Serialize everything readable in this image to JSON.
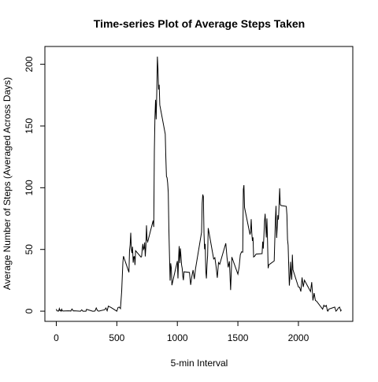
{
  "chart_data": {
    "type": "line",
    "title": "Time-series Plot of Average Steps Taken",
    "x_label": "5-min Interval",
    "y_label": "Average Number of Steps (Averaged Across Days)",
    "color": "#000000",
    "x": [
      0,
      5,
      10,
      15,
      20,
      25,
      30,
      35,
      40,
      45,
      50,
      55,
      100,
      110,
      115,
      120,
      125,
      130,
      140,
      150,
      200,
      210,
      220,
      230,
      245,
      250,
      300,
      310,
      320,
      330,
      340,
      350,
      400,
      410,
      420,
      430,
      440,
      450,
      500,
      510,
      520,
      530,
      540,
      550,
      555,
      600,
      605,
      610,
      615,
      620,
      625,
      630,
      635,
      640,
      645,
      650,
      655,
      700,
      705,
      710,
      715,
      720,
      725,
      730,
      735,
      740,
      745,
      750,
      755,
      800,
      805,
      810,
      815,
      820,
      825,
      830,
      835,
      840,
      845,
      850,
      855,
      900,
      905,
      910,
      915,
      920,
      925,
      930,
      935,
      940,
      945,
      950,
      955,
      1000,
      1005,
      1010,
      1015,
      1020,
      1025,
      1030,
      1035,
      1040,
      1045,
      1050,
      1055,
      1100,
      1110,
      1120,
      1130,
      1140,
      1150,
      1200,
      1205,
      1210,
      1215,
      1220,
      1225,
      1230,
      1235,
      1240,
      1245,
      1250,
      1255,
      1300,
      1310,
      1320,
      1330,
      1340,
      1350,
      1400,
      1410,
      1420,
      1430,
      1440,
      1450,
      1500,
      1510,
      1520,
      1530,
      1540,
      1545,
      1550,
      1555,
      1600,
      1605,
      1610,
      1615,
      1620,
      1625,
      1630,
      1640,
      1650,
      1700,
      1705,
      1710,
      1715,
      1720,
      1725,
      1730,
      1735,
      1740,
      1745,
      1750,
      1755,
      1800,
      1805,
      1810,
      1815,
      1820,
      1825,
      1830,
      1835,
      1840,
      1845,
      1850,
      1855,
      1900,
      1905,
      1910,
      1915,
      1920,
      1925,
      1930,
      1935,
      1940,
      1945,
      1950,
      1955,
      2000,
      2010,
      2020,
      2030,
      2040,
      2050,
      2100,
      2110,
      2120,
      2130,
      2140,
      2150,
      2200,
      2210,
      2220,
      2230,
      2240,
      2245,
      2250,
      2300,
      2310,
      2320,
      2330,
      2340,
      2350,
      2355
    ],
    "values": [
      1.7,
      0.3,
      0.1,
      0.2,
      0.1,
      2.1,
      0.5,
      0.9,
      0,
      1.5,
      0.3,
      0.1,
      0.3,
      0.2,
      0.3,
      0,
      1.1,
      1.8,
      0.2,
      0.3,
      0,
      1.1,
      0,
      0,
      0,
      1.5,
      0,
      0,
      0.2,
      2.6,
      0.5,
      0,
      1.2,
      2.6,
      0.3,
      4.1,
      3.5,
      3.1,
      0,
      3,
      3.3,
      2.1,
      16,
      39.5,
      44.5,
      31.5,
      49.3,
      53.8,
      63.5,
      50,
      47.1,
      52.2,
      39.3,
      44,
      44.2,
      37.4,
      49,
      43.8,
      44.4,
      50.5,
      54.5,
      49.9,
      51,
      55.7,
      44.3,
      52.3,
      69.5,
      57.8,
      56.2,
      73.4,
      68.2,
      129.4,
      157.5,
      171.2,
      155.4,
      177.3,
      206.2,
      195.9,
      179.6,
      183.4,
      167,
      143.5,
      124,
      109.1,
      108.1,
      103.7,
      96,
      66.2,
      45.2,
      24.8,
      38.8,
      35,
      21,
      40.6,
      26.5,
      42.4,
      52.7,
      38.9,
      50.8,
      44.3,
      37.4,
      34.7,
      28.3,
      25.1,
      31.9,
      31.4,
      21.3,
      28.4,
      33.3,
      26,
      34.3,
      63.9,
      87.6,
      94.5,
      92.8,
      63.4,
      50.2,
      54.5,
      32.4,
      26.5,
      37.7,
      45,
      67.3,
      42.3,
      43.3,
      36,
      27,
      39.4,
      38,
      55,
      43.6,
      35.5,
      40.4,
      17.1,
      43.8,
      30,
      35.5,
      45.7,
      48.1,
      47.8,
      98.7,
      102.1,
      84,
      62.1,
      64.1,
      74.5,
      63.2,
      56.9,
      59.8,
      43.9,
      44.7,
      46.2,
      46.6,
      56.3,
      50.7,
      61.2,
      72.7,
      78.9,
      68.9,
      59.7,
      75.1,
      56.5,
      34.8,
      37.5,
      40.7,
      58,
      74.7,
      85.3,
      59.3,
      67.8,
      77.7,
      74.2,
      85.3,
      99.5,
      86.6,
      85.6,
      84.9,
      77.8,
      58,
      53.4,
      36.3,
      20.7,
      27.4,
      40,
      30.2,
      25.5,
      45.7,
      33.5,
      19.6,
      19.3,
      15.9,
      27.3,
      19.6,
      25.1,
      15.9,
      23.5,
      8.7,
      14.7,
      8.7,
      8.1,
      1.6,
      4.8,
      3.7,
      4.7,
      0.2,
      0.1,
      1.6,
      3.3,
      0,
      1,
      2.6,
      3.3,
      0.2,
      1.1
    ],
    "xlim": [
      -94.2,
      2449.2
    ],
    "ylim": [
      -8.25,
      214.42
    ],
    "xticks": [
      0,
      500,
      1000,
      1500,
      2000
    ],
    "yticks": [
      0,
      50,
      100,
      150,
      200
    ]
  }
}
